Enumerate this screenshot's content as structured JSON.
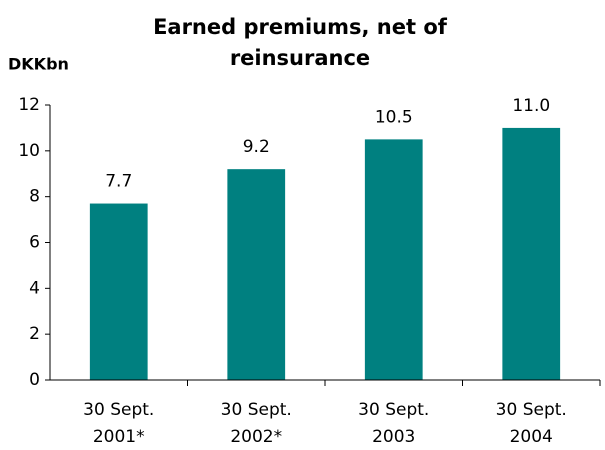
{
  "chart_data": {
    "type": "bar",
    "title": [
      "Earned premiums, net of",
      "reinsurance"
    ],
    "y_axis_label": "DKKbn",
    "categories": [
      [
        "30 Sept.",
        "2001*"
      ],
      [
        "30 Sept.",
        "2002*"
      ],
      [
        "30 Sept.",
        "2003"
      ],
      [
        "30 Sept.",
        "2004"
      ]
    ],
    "values": [
      7.7,
      9.2,
      10.5,
      11.0
    ],
    "value_labels": [
      "7.7",
      "9.2",
      "10.5",
      "11.0"
    ],
    "color": "#008080",
    "ylim": [
      0,
      12
    ],
    "yticks": [
      0,
      2,
      4,
      6,
      8,
      10,
      12
    ],
    "grid": false
  }
}
